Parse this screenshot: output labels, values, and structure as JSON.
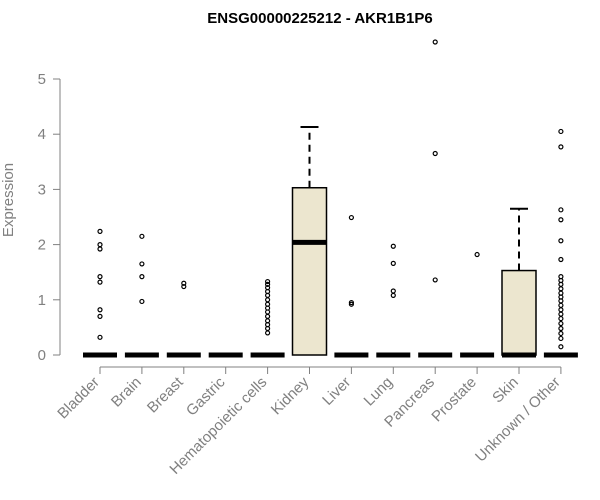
{
  "chart_data": {
    "type": "boxplot",
    "title": "ENSG00000225212 - AKR1B1P6",
    "ylabel": "Expression",
    "xlabel": "",
    "ylim": [
      0,
      5.6
    ],
    "yticks": [
      0,
      1,
      2,
      3,
      4,
      5
    ],
    "grid": false,
    "box_fill": "#ece6cf",
    "line_color": "#000000",
    "axis_color": "#808080",
    "categories": [
      "Bladder",
      "Brain",
      "Breast",
      "Gastric",
      "Hematopoietic cells",
      "Kidney",
      "Liver",
      "Lung",
      "Pancreas",
      "Prostate",
      "Skin",
      "Unknown / Other"
    ],
    "boxes": [
      {
        "category": "Bladder",
        "q1": 0,
        "median": 0,
        "q3": 0,
        "whisker_low": 0,
        "whisker_high": 0,
        "outliers": [
          2.24,
          2.0,
          1.92,
          1.42,
          1.32,
          0.82,
          0.7,
          0.32
        ]
      },
      {
        "category": "Brain",
        "q1": 0,
        "median": 0,
        "q3": 0,
        "whisker_low": 0,
        "whisker_high": 0,
        "outliers": [
          2.15,
          1.65,
          1.42,
          0.97
        ]
      },
      {
        "category": "Breast",
        "q1": 0,
        "median": 0,
        "q3": 0,
        "whisker_low": 0,
        "whisker_high": 0,
        "outliers": [
          1.3,
          1.24
        ]
      },
      {
        "category": "Gastric",
        "q1": 0,
        "median": 0,
        "q3": 0,
        "whisker_low": 0,
        "whisker_high": 0,
        "outliers": []
      },
      {
        "category": "Hematopoietic cells",
        "q1": 0,
        "median": 0,
        "q3": 0,
        "whisker_low": 0,
        "whisker_high": 0,
        "outliers": [
          1.33,
          1.28,
          1.22,
          1.15,
          1.08,
          1.0,
          0.92,
          0.85,
          0.78,
          0.7,
          0.62,
          0.55,
          0.48,
          0.4
        ]
      },
      {
        "category": "Kidney",
        "q1": 0,
        "median": 2.04,
        "q3": 3.03,
        "whisker_low": 0,
        "whisker_high": 4.13,
        "outliers": []
      },
      {
        "category": "Liver",
        "q1": 0,
        "median": 0,
        "q3": 0,
        "whisker_low": 0,
        "whisker_high": 0,
        "outliers": [
          2.49,
          0.95,
          0.92
        ]
      },
      {
        "category": "Lung",
        "q1": 0,
        "median": 0,
        "q3": 0,
        "whisker_low": 0,
        "whisker_high": 0,
        "outliers": [
          1.97,
          1.66,
          1.16,
          1.08
        ]
      },
      {
        "category": "Pancreas",
        "q1": 0,
        "median": 0,
        "q3": 0,
        "whisker_low": 0,
        "whisker_high": 0,
        "outliers": [
          5.67,
          3.65,
          1.36
        ]
      },
      {
        "category": "Prostate",
        "q1": 0,
        "median": 0,
        "q3": 0,
        "whisker_low": 0,
        "whisker_high": 0,
        "outliers": [
          1.82
        ]
      },
      {
        "category": "Skin",
        "q1": 0,
        "median": 0,
        "q3": 1.53,
        "whisker_low": 0,
        "whisker_high": 2.65,
        "outliers": []
      },
      {
        "category": "Unknown / Other",
        "q1": 0,
        "median": 0,
        "q3": 0,
        "whisker_low": 0,
        "whisker_high": 0,
        "outliers": [
          4.05,
          3.77,
          2.63,
          2.45,
          2.07,
          1.73,
          1.42,
          1.35,
          1.28,
          1.2,
          1.12,
          1.05,
          0.98,
          0.9,
          0.82,
          0.74,
          0.66,
          0.57,
          0.48,
          0.39,
          0.3,
          0.15
        ]
      }
    ]
  }
}
